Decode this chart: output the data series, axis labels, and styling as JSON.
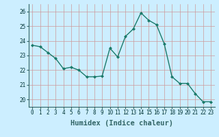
{
  "x": [
    0,
    1,
    2,
    3,
    4,
    5,
    6,
    7,
    8,
    9,
    10,
    11,
    12,
    13,
    14,
    15,
    16,
    17,
    18,
    19,
    20,
    21,
    22,
    23
  ],
  "y": [
    23.7,
    23.6,
    23.2,
    22.8,
    22.1,
    22.2,
    22.0,
    21.55,
    21.55,
    21.6,
    23.5,
    22.9,
    24.3,
    24.8,
    25.9,
    25.4,
    25.1,
    23.8,
    21.55,
    21.1,
    21.1,
    20.4,
    19.85,
    19.85
  ],
  "line_color": "#1a7a6a",
  "marker": "D",
  "marker_size": 2.0,
  "linewidth": 1.0,
  "xlabel": "Humidex (Indice chaleur)",
  "ylim": [
    19.5,
    26.5
  ],
  "xlim": [
    -0.5,
    23.5
  ],
  "yticks": [
    20,
    21,
    22,
    23,
    24,
    25,
    26
  ],
  "xticks": [
    0,
    1,
    2,
    3,
    4,
    5,
    6,
    7,
    8,
    9,
    10,
    11,
    12,
    13,
    14,
    15,
    16,
    17,
    18,
    19,
    20,
    21,
    22,
    23
  ],
  "bg_color": "#cceeff",
  "grid_color_v": "#cc9999",
  "grid_color_h": "#cc9999",
  "tick_labelsize": 5.5,
  "xlabel_fontsize": 7.5,
  "spine_color": "#336666"
}
